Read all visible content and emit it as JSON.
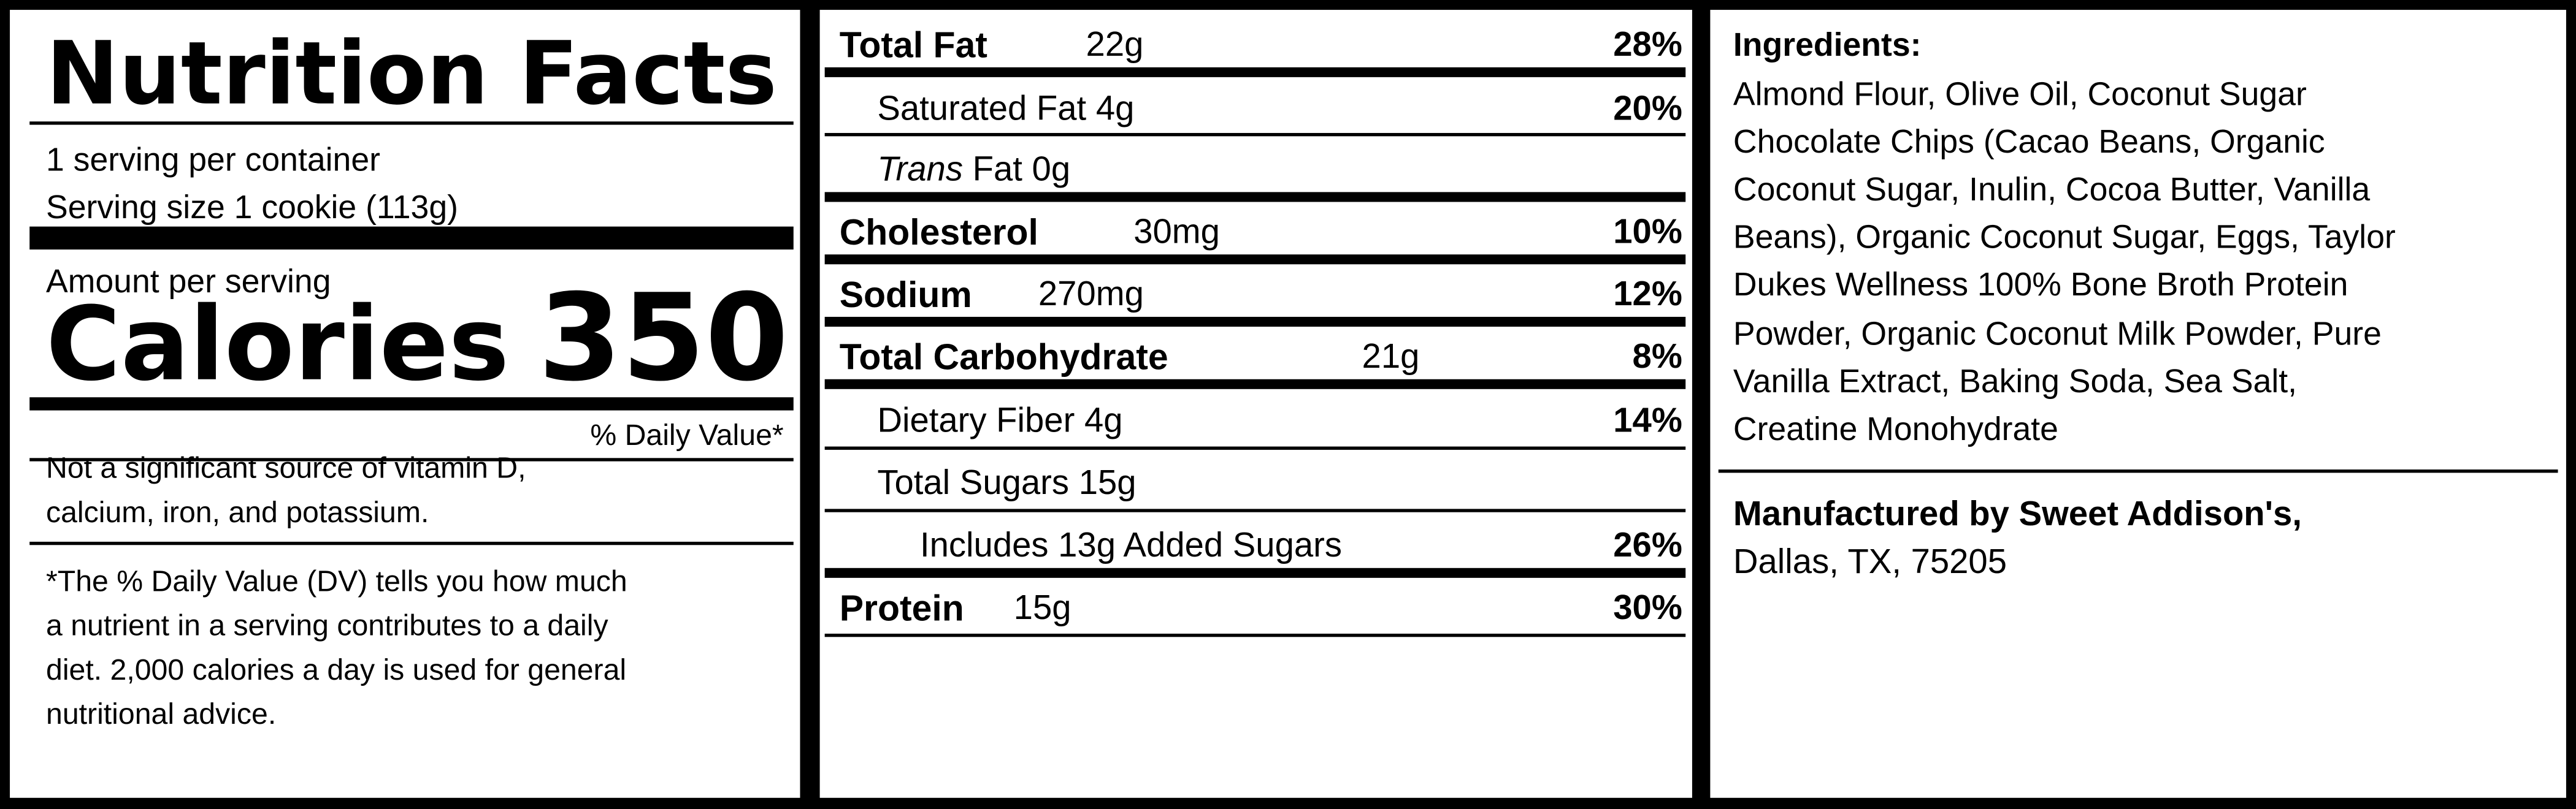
{
  "facts": {
    "title": "Nutrition Facts",
    "servings": "1 serving per container",
    "serving_size": "Serving size 1 cookie (113g)",
    "amount_label": "Amount per serving",
    "calories_label": "Calories",
    "calories": 350,
    "daily_value_header": "% Daily Value*",
    "vitamin_note": [
      "Not a significant source of vitamin D,",
      "calcium, iron, and potassium."
    ],
    "footnote": [
      "*The % Daily Value (DV) tells you how much",
      "a nutrient in a serving contributes to a daily",
      "diet. 2,000 calories a day is used for general",
      "nutritional advice."
    ]
  },
  "nutrients": {
    "total_fat": {
      "name": "Total Fat",
      "amount": "22g",
      "dv": "28%"
    },
    "saturated_fat": {
      "name": "Saturated Fat",
      "amount": "4g",
      "dv": "20%"
    },
    "trans_fat": {
      "prefix": "Trans",
      "name": "Fat",
      "amount": "0g"
    },
    "cholesterol": {
      "name": "Cholesterol",
      "amount": "30mg",
      "dv": "10%"
    },
    "sodium": {
      "name": "Sodium",
      "amount": "270mg",
      "dv": "12%"
    },
    "total_carbohydrate": {
      "name": "Total Carbohydrate",
      "amount": "21g",
      "dv": "8%"
    },
    "dietary_fiber": {
      "name": "Dietary Fiber",
      "amount": "4g",
      "dv": "14%"
    },
    "total_sugars": {
      "name": "Total Sugars",
      "amount": "15g"
    },
    "added_sugars": {
      "label": "Includes 13g Added Sugars",
      "dv": "26%"
    },
    "protein": {
      "name": "Protein",
      "amount": "15g",
      "dv": "30%"
    }
  },
  "ingredients": {
    "title": "Ingredients:",
    "lines": [
      "Almond Flour, Olive Oil, Coconut Sugar",
      "Chocolate Chips (Cacao Beans, Organic",
      "Coconut Sugar, Inulin, Cocoa Butter, Vanilla",
      "Beans), Organic Coconut Sugar, Eggs, Taylor",
      "Dukes Wellness 100% Bone Broth Protein",
      "Powder, Organic Coconut Milk Powder, Pure",
      "Vanilla Extract, Baking Soda, Sea Salt,",
      "Creatine Monohydrate"
    ]
  },
  "manufacturer": {
    "name": "Manufactured by Sweet Addison's,",
    "address": "Dallas, TX, 75205"
  }
}
